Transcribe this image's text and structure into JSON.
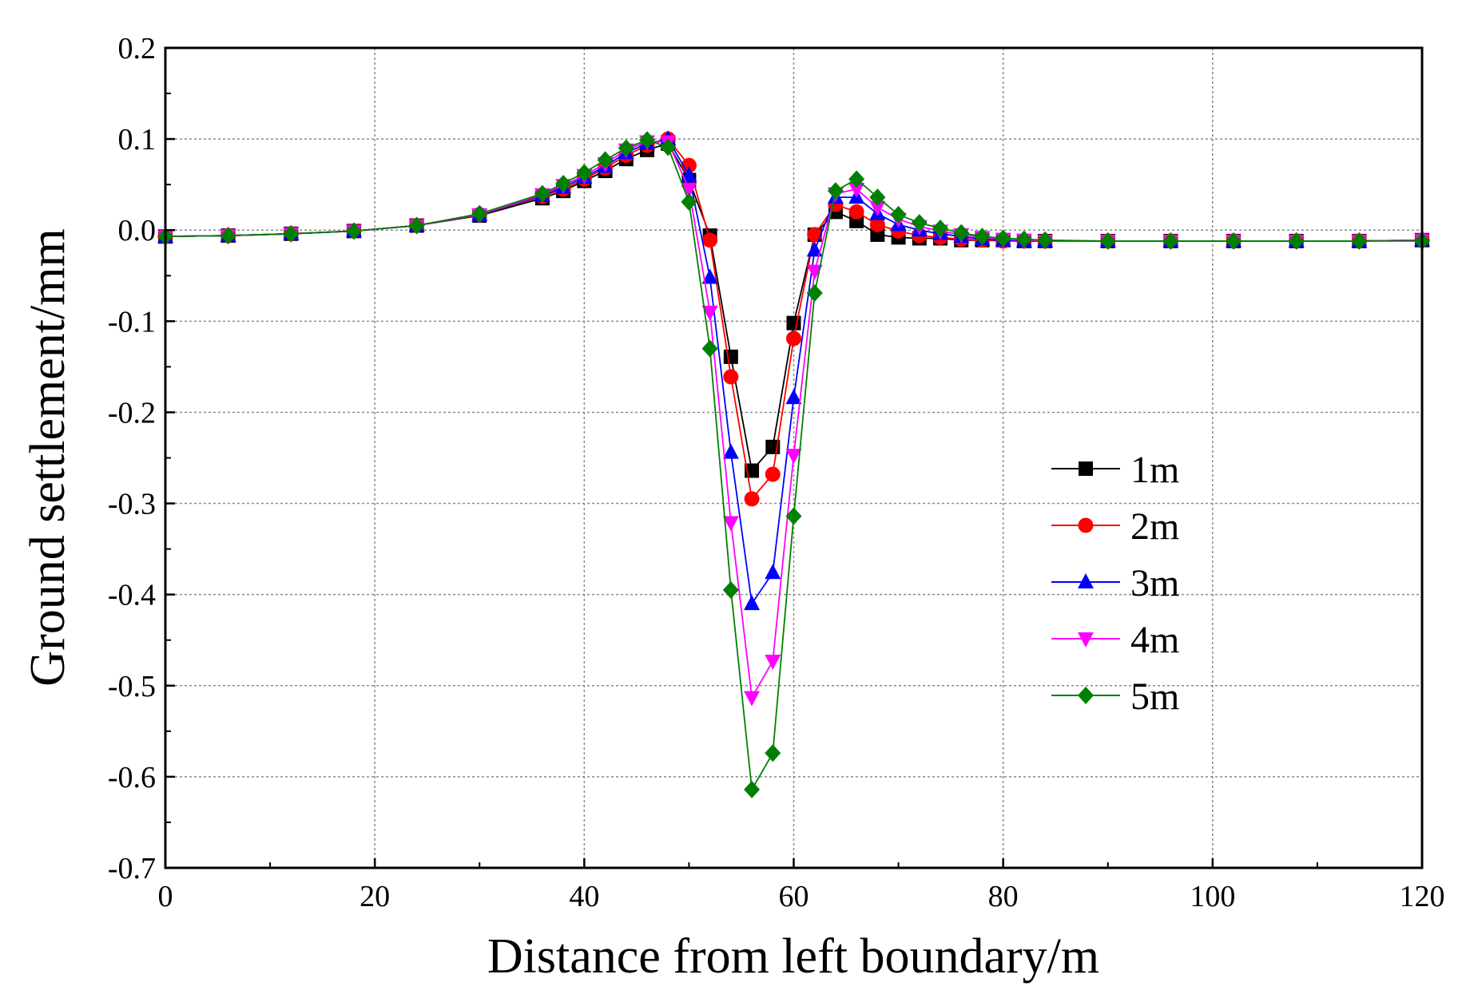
{
  "chart_data": {
    "type": "line",
    "xlabel": "Distance from left boundary/m",
    "ylabel": "Ground settlement/mm",
    "xlim": [
      0,
      120
    ],
    "ylim": [
      -0.7,
      0.2
    ],
    "xticks": [
      0,
      20,
      40,
      60,
      80,
      100,
      120
    ],
    "yticks": [
      0.2,
      0.1,
      0.0,
      -0.1,
      -0.2,
      -0.3,
      -0.4,
      -0.5,
      -0.6,
      -0.7
    ],
    "xtick_labels": [
      "0",
      "20",
      "40",
      "60",
      "80",
      "100",
      "120"
    ],
    "ytick_labels": [
      "0.2",
      "0.1",
      "0.0",
      "-0.1",
      "-0.2",
      "-0.3",
      "-0.4",
      "-0.5",
      "-0.6",
      "-0.7"
    ],
    "grid": true,
    "legend_position": "right",
    "x": [
      0,
      6,
      12,
      18,
      24,
      30,
      36,
      38,
      40,
      42,
      44,
      46,
      48,
      50,
      52,
      54,
      56,
      58,
      60,
      62,
      64,
      66,
      68,
      70,
      72,
      74,
      76,
      78,
      80,
      82,
      84,
      90,
      96,
      102,
      108,
      114,
      120
    ],
    "series": [
      {
        "name": "1m",
        "color": "#000000",
        "marker": "square",
        "values": [
          -0.007,
          -0.006,
          -0.004,
          -0.001,
          0.005,
          0.016,
          0.035,
          0.043,
          0.054,
          0.065,
          0.078,
          0.088,
          0.095,
          0.055,
          -0.006,
          -0.139,
          -0.264,
          -0.238,
          -0.102,
          -0.005,
          0.02,
          0.01,
          -0.005,
          -0.008,
          -0.009,
          -0.009,
          -0.011,
          -0.011,
          -0.011,
          -0.012,
          -0.012,
          -0.012,
          -0.012,
          -0.012,
          -0.012,
          -0.012,
          -0.011
        ]
      },
      {
        "name": "2m",
        "color": "#ff0000",
        "marker": "circle",
        "values": [
          -0.007,
          -0.006,
          -0.004,
          -0.001,
          0.005,
          0.017,
          0.037,
          0.045,
          0.056,
          0.068,
          0.082,
          0.093,
          0.1,
          0.071,
          -0.011,
          -0.161,
          -0.295,
          -0.268,
          -0.119,
          -0.005,
          0.028,
          0.02,
          0.006,
          -0.001,
          -0.006,
          -0.008,
          -0.01,
          -0.011,
          -0.012,
          -0.012,
          -0.012,
          -0.012,
          -0.012,
          -0.012,
          -0.012,
          -0.012,
          -0.011
        ]
      },
      {
        "name": "3m",
        "color": "#0000ff",
        "marker": "triangle-up",
        "values": [
          -0.007,
          -0.006,
          -0.004,
          -0.001,
          0.005,
          0.017,
          0.038,
          0.047,
          0.058,
          0.07,
          0.085,
          0.095,
          0.1,
          0.06,
          -0.052,
          -0.244,
          -0.41,
          -0.376,
          -0.184,
          -0.022,
          0.036,
          0.036,
          0.018,
          0.006,
          0.0,
          -0.004,
          -0.007,
          -0.01,
          -0.011,
          -0.012,
          -0.012,
          -0.012,
          -0.012,
          -0.012,
          -0.012,
          -0.012,
          -0.011
        ]
      },
      {
        "name": "4m",
        "color": "#ff00ff",
        "marker": "triangle-down",
        "values": [
          -0.007,
          -0.006,
          -0.004,
          -0.001,
          0.005,
          0.017,
          0.039,
          0.049,
          0.06,
          0.073,
          0.088,
          0.097,
          0.097,
          0.045,
          -0.09,
          -0.321,
          -0.513,
          -0.473,
          -0.247,
          -0.045,
          0.04,
          0.045,
          0.025,
          0.012,
          0.004,
          -0.001,
          -0.005,
          -0.008,
          -0.01,
          -0.011,
          -0.012,
          -0.012,
          -0.012,
          -0.012,
          -0.012,
          -0.012,
          -0.011
        ]
      },
      {
        "name": "5m",
        "color": "#008000",
        "marker": "diamond",
        "values": [
          -0.007,
          -0.006,
          -0.004,
          -0.001,
          0.005,
          0.018,
          0.04,
          0.051,
          0.063,
          0.077,
          0.09,
          0.099,
          0.091,
          0.031,
          -0.13,
          -0.395,
          -0.614,
          -0.574,
          -0.314,
          -0.069,
          0.043,
          0.056,
          0.036,
          0.017,
          0.008,
          0.002,
          -0.003,
          -0.007,
          -0.009,
          -0.01,
          -0.011,
          -0.012,
          -0.012,
          -0.012,
          -0.012,
          -0.012,
          -0.012
        ]
      }
    ]
  }
}
